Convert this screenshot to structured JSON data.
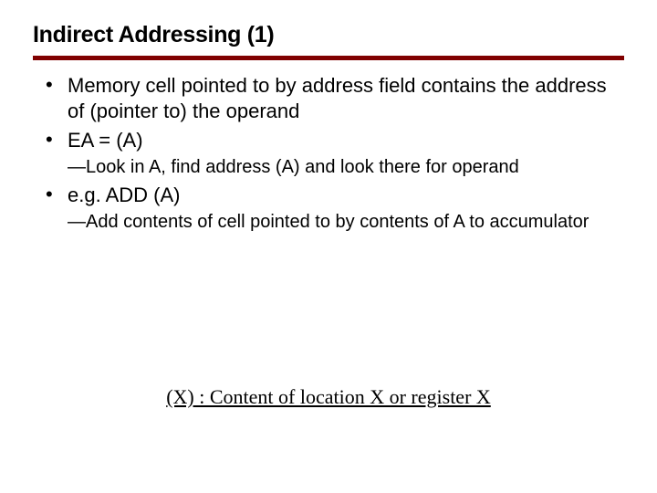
{
  "title": "Indirect Addressing (1)",
  "bullets": {
    "b1": "Memory cell pointed to by address field contains the address of (pointer to) the operand",
    "b2": "EA = (A)",
    "b2s1": "—Look in A, find address (A) and look there for operand",
    "b3": "e.g. ADD (A)",
    "b3s1": "—Add contents of cell pointed to by contents of A to accumulator"
  },
  "footnote": "(X) : Content of location X or register X",
  "colors": {
    "rule": "#800000",
    "text": "#000000",
    "background": "#ffffff"
  }
}
